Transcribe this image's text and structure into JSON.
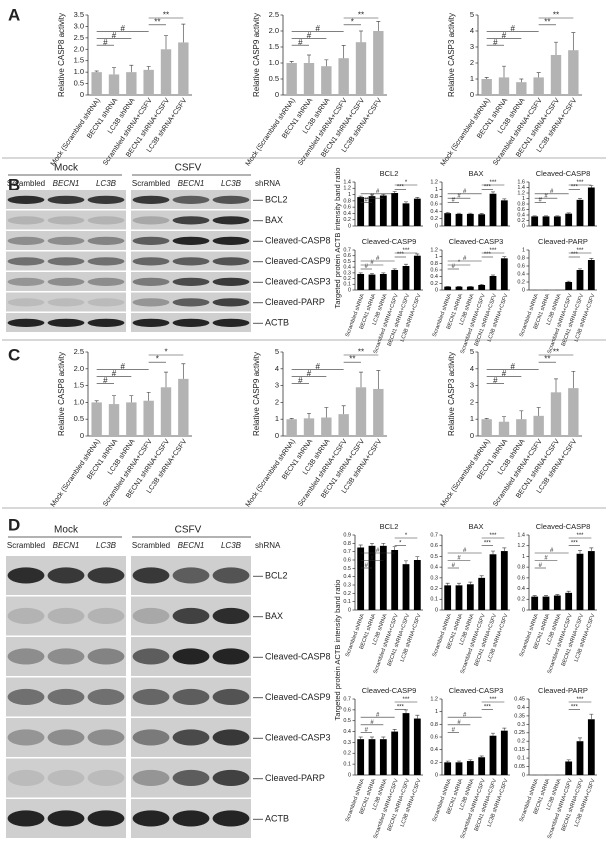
{
  "panels": [
    "A",
    "B",
    "C",
    "D"
  ],
  "blots": [
    {
      "groups": [
        "Mock",
        "CSFV"
      ],
      "lanes": [
        "Scrambled",
        "BECN1",
        "LC3B",
        "Scrambled",
        "BECN1",
        "LC3B"
      ],
      "lane_suffix": "shRNA",
      "proteins": [
        "BCL2",
        "BAX",
        "Cleaved-CASP8",
        "Cleaved-CASP9",
        "Cleaved-CASP3",
        "Cleaved-PARP",
        "ACTB"
      ],
      "ratio_label": "Targeted protein ACTB intensity band ratio"
    },
    {
      "groups": [
        "Mock",
        "CSFV"
      ],
      "lanes": [
        "Scrambled",
        "BECN1",
        "LC3B",
        "Scrambled",
        "BECN1",
        "LC3B"
      ],
      "lane_suffix": "shRNA",
      "proteins": [
        "BCL2",
        "BAX",
        "Cleaved-CASP8",
        "Cleaved-CASP9",
        "Cleaved-CASP3",
        "Cleaved-PARP",
        "ACTB"
      ],
      "ratio_label": "Targeted protein ACTB intensity band ratio"
    }
  ],
  "chart_data": [
    {
      "type": "bar",
      "ylabel": "Relative CASP8 activity",
      "color": "#b3b3b3",
      "categories": [
        "Mock (Scrambled shRNA)",
        "BECN1 shRNA",
        "LC3B shRNA",
        "Scrambled shRNA+CSFV",
        "BECN1 shRNA+CSFV",
        "LC3B shRNA+CSFV"
      ],
      "values": [
        1.0,
        0.9,
        1.0,
        1.1,
        2.0,
        2.3
      ],
      "errors": [
        0.05,
        0.3,
        0.3,
        0.15,
        0.6,
        0.8
      ],
      "ylim": [
        0,
        3.5
      ],
      "yticks": [
        0,
        0.5,
        {
          "value": 1,
          "label": "1.0"
        },
        1.5,
        {
          "value": 2,
          "label": "2.0"
        },
        2.5,
        {
          "value": 3,
          "label": "3.0"
        },
        3.5
      ],
      "annotations": [
        "#",
        "#",
        "#",
        "**",
        "**"
      ]
    },
    {
      "type": "bar",
      "ylabel": "Relative CASP9 activity",
      "color": "#b3b3b3",
      "categories": [
        "Mock (Scrambled shRNA)",
        "BECN1 shRNA",
        "LC3B shRNA",
        "Scrambled shRNA+CSFV",
        "BECN1 shRNA+CSFV",
        "LC3B shRNA+CSFV"
      ],
      "values": [
        1.0,
        1.0,
        0.9,
        1.15,
        1.65,
        2.0
      ],
      "errors": [
        0.05,
        0.25,
        0.2,
        0.4,
        0.35,
        0.3
      ],
      "ylim": [
        0,
        2.5
      ],
      "yticks": [
        0,
        0.5,
        {
          "value": 1,
          "label": "1.0"
        },
        1.5,
        {
          "value": 2,
          "label": "2.0"
        },
        2.5
      ],
      "annotations": [
        "#",
        "#",
        "#",
        "*",
        "**"
      ]
    },
    {
      "type": "bar",
      "ylabel": "Relative CASP3 activity",
      "color": "#b3b3b3",
      "categories": [
        "Mock (Scrambled shRNA)",
        "BECN1 shRNA",
        "LC3B shRNA",
        "Scrambled shRNA+CSFV",
        "BECN1 shRNA+CSFV",
        "LC3B shRNA+CSFV"
      ],
      "values": [
        1.0,
        1.1,
        0.8,
        1.1,
        2.5,
        2.8
      ],
      "errors": [
        0.1,
        0.7,
        0.2,
        0.3,
        0.8,
        1.1
      ],
      "ylim": [
        0,
        5
      ],
      "yticks": [
        0,
        1,
        2,
        3,
        4,
        5
      ],
      "annotations": [
        "#",
        "#",
        "#",
        "**",
        "**"
      ]
    },
    {
      "type": "bar",
      "title": "BCL2",
      "color": "#000000",
      "values": [
        0.92,
        0.95,
        0.97,
        1.05,
        0.72,
        0.87
      ],
      "errors": [
        0.03,
        0.04,
        0.04,
        0.05,
        0.05,
        0.04
      ],
      "ylim": [
        0,
        1.4
      ],
      "yticks": [
        0,
        0.2,
        0.4,
        0.6,
        0.8,
        1,
        1.2,
        1.4
      ],
      "annotations": [
        "#",
        "#",
        "#",
        "***",
        "*"
      ]
    },
    {
      "type": "bar",
      "title": "BAX",
      "color": "#000000",
      "values": [
        0.35,
        0.33,
        0.33,
        0.32,
        0.88,
        0.7
      ],
      "errors": [
        0.02,
        0.02,
        0.02,
        0.02,
        0.05,
        0.04
      ],
      "ylim": [
        0,
        1.2
      ],
      "yticks": [
        0,
        0.2,
        0.4,
        0.6,
        0.8,
        1,
        1.2
      ],
      "annotations": [
        "#",
        "#",
        "#",
        "***",
        "***"
      ]
    },
    {
      "type": "bar",
      "title": "Cleaved-CASP8",
      "color": "#000000",
      "values": [
        0.35,
        0.35,
        0.35,
        0.45,
        0.95,
        1.4
      ],
      "errors": [
        0.02,
        0.02,
        0.02,
        0.03,
        0.05,
        0.07
      ],
      "ylim": [
        0,
        1.6
      ],
      "yticks": [
        0,
        0.2,
        0.4,
        0.6,
        0.8,
        1,
        1.2,
        1.4,
        1.6
      ],
      "annotations": [
        "#",
        "#",
        "#",
        "***",
        "***"
      ]
    },
    {
      "type": "bar",
      "title": "Cleaved-CASP9",
      "color": "#000000",
      "categories": [
        "Scrambled shRNA",
        "BECN1 shRNA",
        "LC3B shRNA",
        "Scrambled shRNA+CSFV",
        "BECN1 shRNA+CSFV",
        "LC3B shRNA+CSFV"
      ],
      "values": [
        0.28,
        0.27,
        0.28,
        0.35,
        0.42,
        0.6
      ],
      "errors": [
        0.02,
        0.02,
        0.02,
        0.02,
        0.03,
        0.03
      ],
      "ylim": [
        0,
        0.7
      ],
      "yticks": [
        0,
        0.1,
        0.2,
        0.3,
        0.4,
        0.5,
        0.6,
        0.7
      ],
      "annotations": [
        "#",
        "#",
        "#",
        "***",
        "***"
      ]
    },
    {
      "type": "bar",
      "title": "Cleaved-CASP3",
      "color": "#000000",
      "categories": [
        "Scrambled shRNA",
        "BECN1 shRNA",
        "LC3B shRNA",
        "Scrambled shRNA+CSFV",
        "BECN1 shRNA+CSFV",
        "LC3B shRNA+CSFV"
      ],
      "values": [
        0.1,
        0.1,
        0.1,
        0.15,
        0.42,
        0.95
      ],
      "errors": [
        0.01,
        0.01,
        0.01,
        0.02,
        0.03,
        0.05
      ],
      "ylim": [
        0,
        1.2
      ],
      "yticks": [
        0,
        0.2,
        0.4,
        0.6,
        0.8,
        1,
        1.2
      ],
      "annotations": [
        "#",
        "*",
        "#",
        "***",
        "***"
      ]
    },
    {
      "type": "bar",
      "title": "Cleaved-PARP",
      "color": "#000000",
      "categories": [
        "Scrambled shRNA",
        "BECN1 shRNA",
        "LC3B shRNA",
        "Scrambled shRNA+CSFV",
        "BECN1 shRNA+CSFV",
        "LC3B shRNA+CSFV"
      ],
      "values": [
        0,
        0,
        0,
        0.2,
        0.5,
        0.75
      ],
      "errors": [
        0,
        0,
        0,
        0.02,
        0.03,
        0.04
      ],
      "ylim": [
        0,
        1
      ],
      "yticks": [
        0,
        0.2,
        0.4,
        0.6,
        0.8,
        1
      ],
      "annotations": [
        "***",
        "***"
      ]
    },
    {
      "type": "bar",
      "ylabel": "Relative CASP8 activity",
      "color": "#b3b3b3",
      "categories": [
        "Mock (Scrambled shRNA)",
        "BECN1 shRNA",
        "LC3B shRNA",
        "Scrambled shRNA+CSFV",
        "BECN1 shRNA+CSFV",
        "LC3B shRNA+CSFV"
      ],
      "values": [
        1.0,
        0.95,
        1.0,
        1.05,
        1.45,
        1.7
      ],
      "errors": [
        0.05,
        0.25,
        0.2,
        0.25,
        0.45,
        0.45
      ],
      "ylim": [
        0,
        2.5
      ],
      "yticks": [
        0,
        0.5,
        {
          "value": 1,
          "label": "1.0"
        },
        1.5,
        {
          "value": 2,
          "label": "2.0"
        },
        2.5
      ],
      "annotations": [
        "#",
        "#",
        "#",
        "*",
        "*"
      ]
    },
    {
      "type": "bar",
      "ylabel": "Relative CASP9 activity",
      "color": "#b3b3b3",
      "categories": [
        "Mock (Scrambled shRNA)",
        "BECN1 shRNA",
        "LC3B shRNA",
        "Scrambled shRNA+CSFV",
        "BECN1 shRNA+CSFV",
        "LC3B shRNA+CSFV"
      ],
      "values": [
        1.0,
        1.05,
        1.1,
        1.3,
        2.9,
        2.8
      ],
      "errors": [
        0.05,
        0.3,
        0.6,
        0.5,
        0.9,
        1.1
      ],
      "ylim": [
        0,
        5
      ],
      "yticks": [
        0,
        1,
        2,
        3,
        4,
        5
      ],
      "annotations": [
        "#",
        "#",
        "#",
        "**",
        "**"
      ]
    },
    {
      "type": "bar",
      "ylabel": "Relative CASP3 activity",
      "color": "#b3b3b3",
      "categories": [
        "Mock (Scrambled shRNA)",
        "BECN1 shRNA",
        "LC3B shRNA",
        "Scrambled shRNA+CSFV",
        "BECN1 shRNA+CSFV",
        "LC3B shRNA+CSFV"
      ],
      "values": [
        1.0,
        0.85,
        1.0,
        1.2,
        2.6,
        2.85
      ],
      "errors": [
        0.05,
        0.3,
        0.5,
        0.5,
        0.8,
        1.0
      ],
      "ylim": [
        0,
        5
      ],
      "yticks": [
        0,
        1,
        2,
        3,
        4,
        5
      ],
      "annotations": [
        "#",
        "#",
        "#",
        "**",
        "**"
      ]
    },
    {
      "type": "bar",
      "title": "BCL2",
      "color": "#000000",
      "categories": [
        "Scrambled shRNA",
        "BECN1 shRNA",
        "LC3B shRNA",
        "Scrambled shRNA+CSFV",
        "BECN1 shRNA+CSFV",
        "LC3B shRNA+CSFV"
      ],
      "values": [
        0.75,
        0.77,
        0.77,
        0.72,
        0.55,
        0.6
      ],
      "errors": [
        0.03,
        0.03,
        0.03,
        0.04,
        0.04,
        0.04
      ],
      "ylim": [
        0,
        0.9
      ],
      "yticks": [
        0,
        0.1,
        0.2,
        0.3,
        0.4,
        0.5,
        0.6,
        0.7,
        0.8,
        0.9
      ],
      "annotations": [
        "#",
        "#",
        "#",
        "*",
        "*"
      ]
    },
    {
      "type": "bar",
      "title": "BAX",
      "color": "#000000",
      "categories": [
        "Scrambled shRNA",
        "BECN1 shRNA",
        "LC3B shRNA",
        "Scrambled shRNA+CSFV",
        "BECN1 shRNA+CSFV",
        "LC3B shRNA+CSFV"
      ],
      "values": [
        0.23,
        0.23,
        0.24,
        0.3,
        0.52,
        0.55
      ],
      "errors": [
        0.02,
        0.02,
        0.02,
        0.02,
        0.03,
        0.03
      ],
      "ylim": [
        0,
        0.7
      ],
      "yticks": [
        0,
        0.1,
        0.2,
        0.3,
        0.4,
        0.5,
        0.6,
        0.7
      ],
      "annotations": [
        "#",
        "#",
        "#",
        "***",
        "***"
      ]
    },
    {
      "type": "bar",
      "title": "Cleaved-CASP8",
      "color": "#000000",
      "categories": [
        "Scrambled shRNA",
        "BECN1 shRNA",
        "LC3B shRNA",
        "Scrambled shRNA+CSFV",
        "BECN1 shRNA+CSFV",
        "LC3B shRNA+CSFV"
      ],
      "values": [
        0.25,
        0.25,
        0.27,
        0.32,
        1.05,
        1.1
      ],
      "errors": [
        0.02,
        0.02,
        0.02,
        0.03,
        0.06,
        0.06
      ],
      "ylim": [
        0,
        1.4
      ],
      "yticks": [
        0,
        0.2,
        0.4,
        0.6,
        0.8,
        1,
        1.2,
        1.4
      ],
      "annotations": [
        "#",
        "#",
        "#",
        "***",
        "***"
      ]
    },
    {
      "type": "bar",
      "title": "Cleaved-CASP9",
      "color": "#000000",
      "categories": [
        "Scrambled shRNA",
        "BECN1 shRNA",
        "LC3B shRNA",
        "Scrambled shRNA+CSFV",
        "BECN1 shRNA+CSFV",
        "LC3B shRNA+CSFV"
      ],
      "values": [
        0.33,
        0.33,
        0.33,
        0.4,
        0.57,
        0.52
      ],
      "errors": [
        0.02,
        0.02,
        0.02,
        0.02,
        0.03,
        0.03
      ],
      "ylim": [
        0,
        0.7
      ],
      "yticks": [
        0,
        0.1,
        0.2,
        0.3,
        0.4,
        0.5,
        0.6,
        0.7
      ],
      "annotations": [
        "#",
        "#",
        "#",
        "***",
        "***"
      ]
    },
    {
      "type": "bar",
      "title": "Cleaved-CASP3",
      "color": "#000000",
      "categories": [
        "Scrambled shRNA",
        "BECN1 shRNA",
        "LC3B shRNA",
        "Scrambled shRNA+CSFV",
        "BECN1 shRNA+CSFV",
        "LC3B shRNA+CSFV"
      ],
      "values": [
        0.2,
        0.2,
        0.22,
        0.28,
        0.62,
        0.7
      ],
      "errors": [
        0.02,
        0.02,
        0.02,
        0.02,
        0.04,
        0.04
      ],
      "ylim": [
        0,
        1.2
      ],
      "yticks": [
        0,
        0.2,
        0.4,
        0.6,
        0.8,
        1,
        1.2
      ],
      "annotations": [
        "#",
        "#",
        "#",
        "***",
        "***"
      ]
    },
    {
      "type": "bar",
      "title": "Cleaved-PARP",
      "color": "#000000",
      "categories": [
        "Scrambled shRNA",
        "BECN1 shRNA",
        "LC3B shRNA",
        "Scrambled shRNA+CSFV",
        "BECN1 shRNA+CSFV",
        "LC3B shRNA+CSFV"
      ],
      "values": [
        0,
        0,
        0,
        0.08,
        0.2,
        0.33
      ],
      "errors": [
        0,
        0,
        0,
        0.01,
        0.02,
        0.03
      ],
      "ylim": [
        0,
        0.45
      ],
      "yticks": [
        0,
        0.05,
        0.1,
        0.15,
        0.2,
        0.25,
        0.3,
        0.35,
        0.4,
        0.45
      ],
      "annotations": [
        "***",
        "***"
      ]
    }
  ]
}
